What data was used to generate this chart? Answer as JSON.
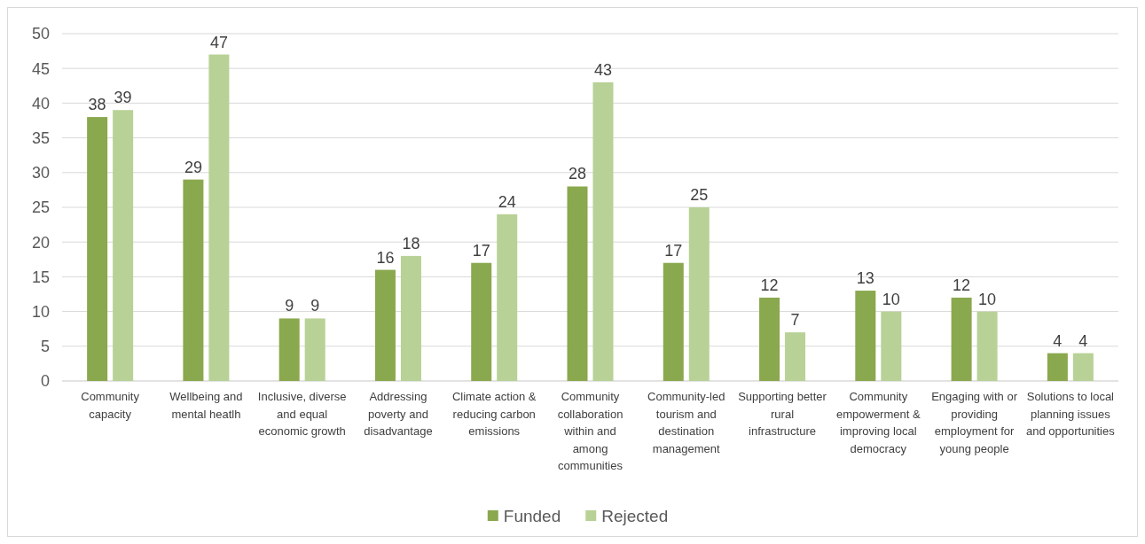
{
  "chart_data": {
    "type": "bar",
    "categories": [
      "Community capacity",
      "Wellbeing and mental heatlh",
      "Inclusive, diverse and equal economic growth",
      "Addressing poverty and disadvantage",
      "Climate action & reducing carbon emissions",
      "Community collaboration within and among communities",
      "Community-led tourism and destination management",
      "Supporting better rural infrastructure",
      "Community empowerment & improving local democracy",
      "Engaging with or providing employment for young people",
      "Solutions to local planning issues and opportunities"
    ],
    "series": [
      {
        "name": "Funded",
        "color": "#8aa84e",
        "values": [
          38,
          29,
          9,
          16,
          17,
          28,
          17,
          12,
          13,
          12,
          4
        ]
      },
      {
        "name": "Rejected",
        "color": "#b8d196",
        "values": [
          39,
          47,
          9,
          18,
          24,
          43,
          25,
          7,
          10,
          10,
          4
        ]
      }
    ],
    "ylim": [
      0,
      50
    ],
    "yticks": [
      0,
      5,
      10,
      15,
      20,
      25,
      30,
      35,
      40,
      45,
      50
    ],
    "grid": "y",
    "legend": "bottom",
    "data_labels": true
  }
}
